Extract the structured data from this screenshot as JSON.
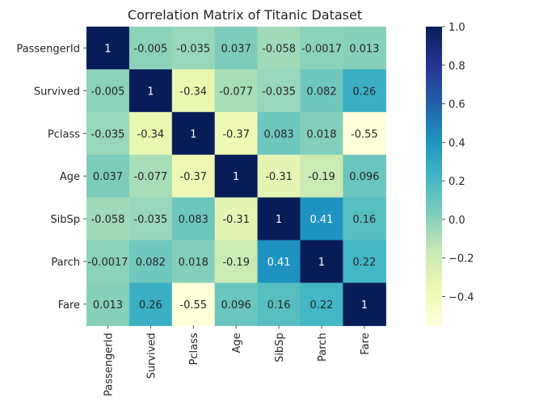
{
  "chart_data": {
    "type": "heatmap",
    "title": "Correlation Matrix of Titanic Dataset",
    "xlabel": "",
    "ylabel": "",
    "rows": [
      "PassengerId",
      "Survived",
      "Pclass",
      "Age",
      "SibSp",
      "Parch",
      "Fare"
    ],
    "cols": [
      "PassengerId",
      "Survived",
      "Pclass",
      "Age",
      "SibSp",
      "Parch",
      "Fare"
    ],
    "values": [
      [
        1,
        -0.005,
        -0.035,
        0.037,
        -0.058,
        -0.0017,
        0.013
      ],
      [
        -0.005,
        1,
        -0.34,
        -0.077,
        -0.035,
        0.082,
        0.26
      ],
      [
        -0.035,
        -0.34,
        1,
        -0.37,
        0.083,
        0.018,
        -0.55
      ],
      [
        0.037,
        -0.077,
        -0.37,
        1,
        -0.31,
        -0.19,
        0.096
      ],
      [
        -0.058,
        -0.035,
        0.083,
        -0.31,
        1,
        0.41,
        0.16
      ],
      [
        -0.0017,
        0.082,
        0.018,
        -0.19,
        0.41,
        1,
        0.22
      ],
      [
        0.013,
        0.26,
        -0.55,
        0.096,
        0.16,
        0.22,
        1
      ]
    ],
    "labels": [
      [
        "1",
        "-0.005",
        "-0.035",
        "0.037",
        "-0.058",
        "-0.0017",
        "0.013"
      ],
      [
        "-0.005",
        "1",
        "-0.34",
        "-0.077",
        "-0.035",
        "0.082",
        "0.26"
      ],
      [
        "-0.035",
        "-0.34",
        "1",
        "-0.37",
        "0.083",
        "0.018",
        "-0.55"
      ],
      [
        "0.037",
        "-0.077",
        "-0.37",
        "1",
        "-0.31",
        "-0.19",
        "0.096"
      ],
      [
        "-0.058",
        "-0.035",
        "0.083",
        "-0.31",
        "1",
        "0.41",
        "0.16"
      ],
      [
        "-0.0017",
        "0.082",
        "0.018",
        "-0.19",
        "0.41",
        "1",
        "0.22"
      ],
      [
        "0.013",
        "0.26",
        "-0.55",
        "0.096",
        "0.16",
        "0.22",
        "1"
      ]
    ],
    "colormap": "YlGnBu",
    "colormap_stops": [
      "#ffffd9",
      "#edf8b1",
      "#c7e9b4",
      "#7fcdbb",
      "#41b6c4",
      "#1d91c0",
      "#225ea8",
      "#253494",
      "#081d58"
    ],
    "vmin": -0.55,
    "vmax": 1.0,
    "colorbar_ticks": [
      1.0,
      0.8,
      0.6,
      0.4,
      0.2,
      0.0,
      -0.2,
      -0.4
    ],
    "colorbar_tick_labels": [
      "1.0",
      "0.8",
      "0.6",
      "0.4",
      "0.2",
      "0.0",
      "−0.2",
      "−0.4"
    ],
    "annotation_dark_text": "#262626",
    "annotation_light_text": "#ffffff"
  }
}
